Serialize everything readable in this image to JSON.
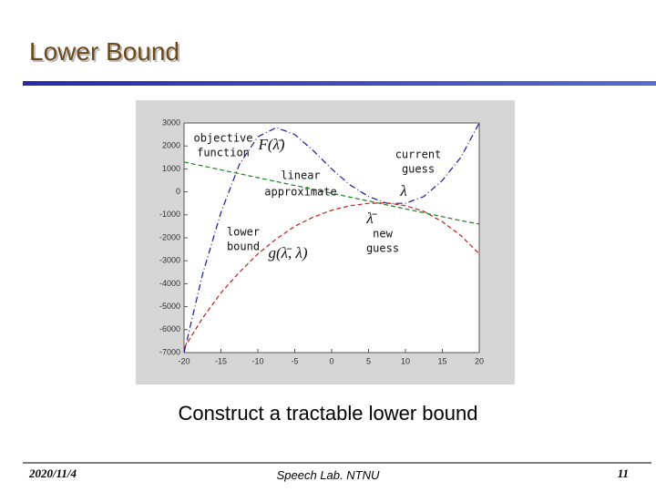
{
  "slide": {
    "title": "Lower Bound",
    "caption": "Construct a tractable lower bound",
    "footer": {
      "date": "2020/11/4",
      "lab": "Speech Lab. NTNU",
      "page": "11"
    }
  },
  "chart_data": {
    "type": "line",
    "x": [
      -20,
      -17.5,
      -15,
      -12.5,
      -10,
      -7.5,
      -5,
      -2.5,
      0,
      2.5,
      5,
      7.5,
      10,
      12.5,
      15,
      17.5,
      20
    ],
    "series": [
      {
        "name": "objective function",
        "color": "#1a1aa0",
        "values": [
          -7000,
          -3600,
          -900,
          1200,
          2400,
          2800,
          2500,
          1800,
          1000,
          300,
          -200,
          -500,
          -500,
          -200,
          500,
          1500,
          3000
        ]
      },
      {
        "name": "lower bound",
        "color": "#c02020",
        "values": [
          -6800,
          -5500,
          -4400,
          -3500,
          -2700,
          -2050,
          -1500,
          -1100,
          -800,
          -600,
          -500,
          -480,
          -600,
          -850,
          -1300,
          -1900,
          -2700
        ]
      },
      {
        "name": "linear approximate",
        "color": "#208020",
        "values": [
          1300,
          1130,
          960,
          790,
          620,
          450,
          280,
          110,
          -60,
          -230,
          -400,
          -570,
          -740,
          -910,
          -1080,
          -1250,
          -1400
        ]
      }
    ],
    "annotations": [
      "objective",
      "function",
      "F(λ̄)",
      "current",
      "guess",
      "λ",
      "linear",
      "approximate",
      "λ̄",
      "lower",
      "bound",
      "new",
      "guess",
      "g(λ̄, λ)"
    ],
    "xlim": [
      -20,
      20
    ],
    "xticks": [
      -20,
      -15,
      -10,
      -5,
      0,
      5,
      10,
      15,
      20
    ],
    "ylim": [
      -7000,
      3000
    ],
    "yticks": [
      3000,
      2000,
      1000,
      0,
      -1000,
      -2000,
      -3000,
      -4000,
      -5000,
      -6000,
      -7000
    ],
    "grid": false
  }
}
